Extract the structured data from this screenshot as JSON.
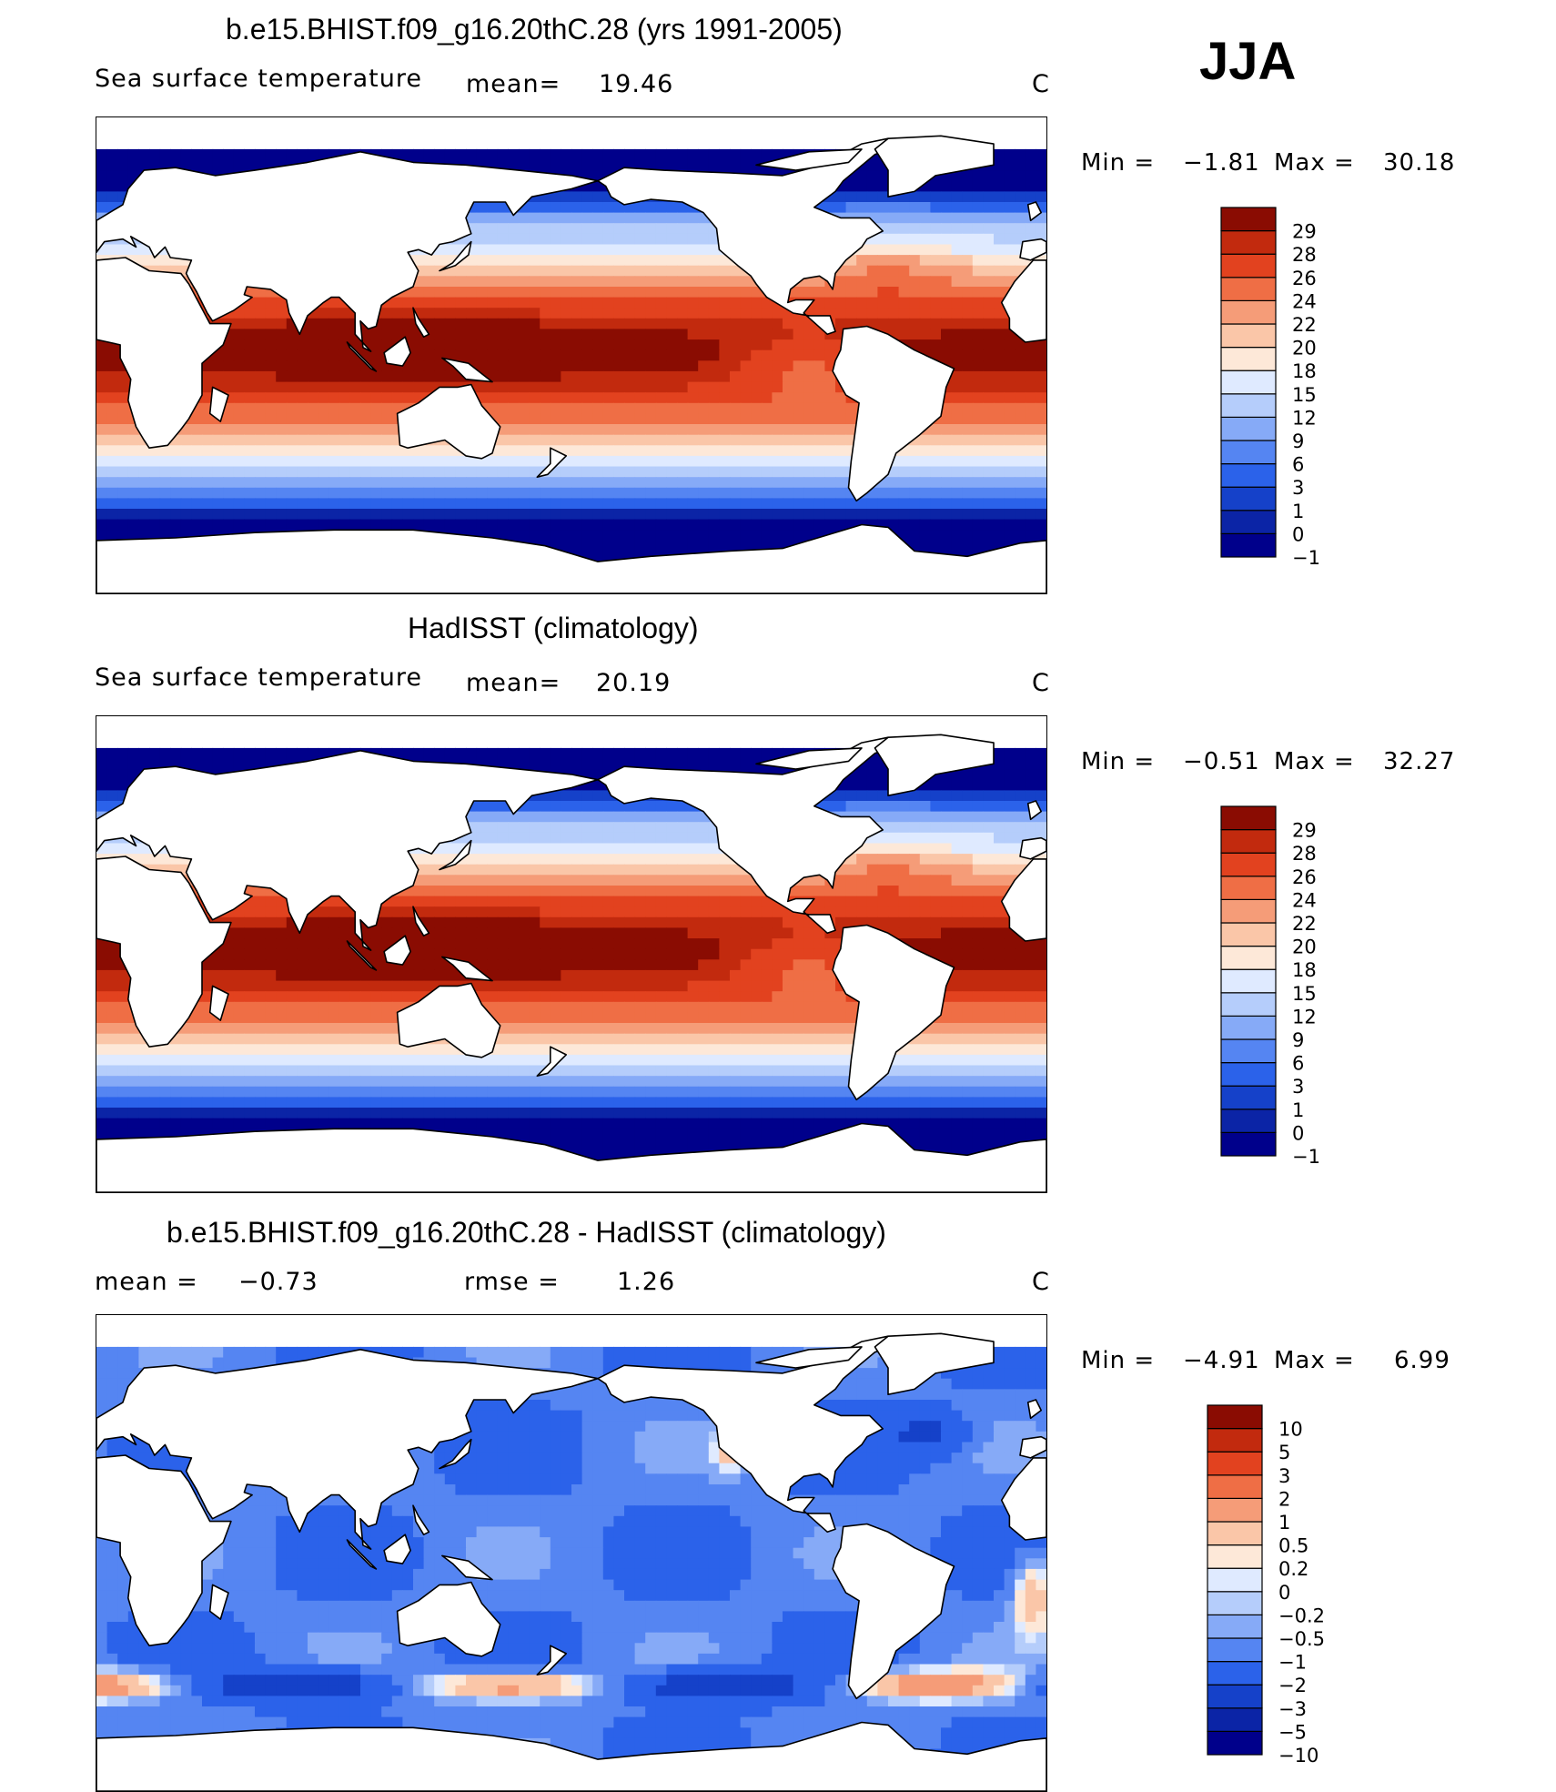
{
  "season": "JJA",
  "chart_data": [
    {
      "type": "heatmap",
      "title": "b.e15.BHIST.f09_g16.20thC.28 (yrs 1991-2005)",
      "left_label": "Sea surface temperature",
      "stat_label": "mean=",
      "stat_value": "19.46",
      "units": "C",
      "min_label": "Min =",
      "min_value": "−1.81",
      "max_label": "Max =",
      "max_value": "30.18",
      "stats": {
        "mean": 19.46,
        "min": -1.81,
        "max": 30.18
      },
      "projection": "cylindrical equidistant, 0-360 longitude",
      "levels": [
        "−1",
        "0",
        "1",
        "3",
        "6",
        "9",
        "12",
        "15",
        "18",
        "20",
        "22",
        "24",
        "26",
        "28",
        "29"
      ],
      "colors": [
        "#00008b",
        "#0b24a6",
        "#1541c9",
        "#2b62ea",
        "#5585f2",
        "#86aaf7",
        "#b5cdfb",
        "#dfeaff",
        "#fde8d8",
        "#fac6a8",
        "#f59c78",
        "#ef6e45",
        "#e2421f",
        "#c22a0e",
        "#8a0c02"
      ]
    },
    {
      "type": "heatmap",
      "title": "HadISST (climatology)",
      "left_label": "Sea surface temperature",
      "stat_label": "mean=",
      "stat_value": "20.19",
      "units": "C",
      "min_label": "Min =",
      "min_value": "−0.51",
      "max_label": "Max =",
      "max_value": "32.27",
      "stats": {
        "mean": 20.19,
        "min": -0.51,
        "max": 32.27
      },
      "projection": "cylindrical equidistant, 0-360 longitude",
      "levels": [
        "−1",
        "0",
        "1",
        "3",
        "6",
        "9",
        "12",
        "15",
        "18",
        "20",
        "22",
        "24",
        "26",
        "28",
        "29"
      ],
      "colors": [
        "#00008b",
        "#0b24a6",
        "#1541c9",
        "#2b62ea",
        "#5585f2",
        "#86aaf7",
        "#b5cdfb",
        "#dfeaff",
        "#fde8d8",
        "#fac6a8",
        "#f59c78",
        "#ef6e45",
        "#e2421f",
        "#c22a0e",
        "#8a0c02"
      ]
    },
    {
      "type": "heatmap",
      "title": "b.e15.BHIST.f09_g16.20thC.28 - HadISST (climatology)",
      "left_label": "mean =",
      "left_value": "−0.73",
      "stat_label": "rmse =",
      "stat_value": "1.26",
      "units": "C",
      "min_label": "Min =",
      "min_value": "−4.91",
      "max_label": "Max =",
      "max_value": "6.99",
      "stats": {
        "mean": -0.73,
        "rmse": 1.26,
        "min": -4.91,
        "max": 6.99
      },
      "projection": "cylindrical equidistant, 0-360 longitude",
      "levels": [
        "−10",
        "−5",
        "−3",
        "−2",
        "−1",
        "−0.5",
        "−0.2",
        "0",
        "0.2",
        "0.5",
        "1",
        "2",
        "3",
        "5",
        "10"
      ],
      "colors": [
        "#00008b",
        "#0b24a6",
        "#1541c9",
        "#2b62ea",
        "#5585f2",
        "#86aaf7",
        "#b5cdfb",
        "#dfeaff",
        "#fde8d8",
        "#fac6a8",
        "#f59c78",
        "#ef6e45",
        "#e2421f",
        "#c22a0e",
        "#8a0c02"
      ]
    }
  ]
}
